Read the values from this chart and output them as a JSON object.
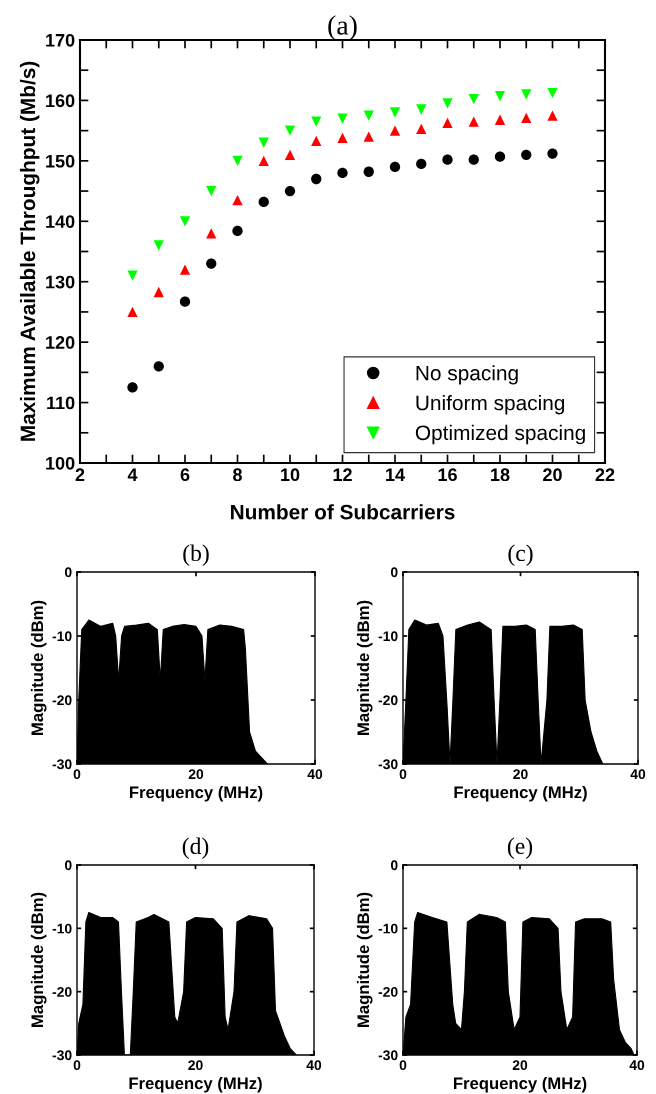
{
  "chart_data": [
    {
      "type": "scatter",
      "title": "(a)",
      "xlabel": "Number of Subcarriers",
      "ylabel": "Maximum Available Throughput (Mb/s)",
      "x": [
        4,
        5,
        6,
        7,
        8,
        9,
        10,
        11,
        12,
        13,
        14,
        15,
        16,
        17,
        18,
        19,
        20
      ],
      "series": [
        {
          "name": "No spacing",
          "color": "#000000",
          "marker": "circle",
          "values": [
            112.5,
            116,
            126.7,
            133,
            138.4,
            143.2,
            145,
            147,
            148,
            148.2,
            149,
            149.5,
            150.2,
            150.2,
            150.7,
            151,
            151.2
          ]
        },
        {
          "name": "Uniform spacing",
          "color": "#ff0000",
          "marker": "triangle",
          "values": [
            125,
            128.3,
            132,
            138,
            143.5,
            150,
            151,
            153.3,
            153.8,
            154,
            155,
            155.3,
            156.3,
            156.5,
            156.8,
            157.1,
            157.5
          ]
        },
        {
          "name": "Optimized spacing",
          "color": "#00ff00",
          "marker": "triangle_down",
          "values": [
            131,
            136,
            140,
            145,
            150,
            153,
            155,
            156.5,
            157,
            157.5,
            158,
            158.5,
            159.5,
            160.2,
            160.7,
            161,
            161.2
          ]
        }
      ],
      "xlim": [
        2,
        22
      ],
      "xticks": [
        2,
        {
          "value": 3,
          "label": null
        },
        4,
        {
          "value": 5,
          "label": null
        },
        6,
        {
          "value": 7,
          "label": null
        },
        8,
        {
          "value": 9,
          "label": null
        },
        10,
        {
          "value": 11,
          "label": null
        },
        12,
        {
          "value": 13,
          "label": null
        },
        14,
        {
          "value": 15,
          "label": null
        },
        16,
        {
          "value": 17,
          "label": null
        },
        18,
        {
          "value": 19,
          "label": null
        },
        20,
        {
          "value": 21,
          "label": null
        },
        22
      ],
      "ylim": [
        100,
        170
      ],
      "yticks": [
        100,
        {
          "value": 105,
          "label": null
        },
        110,
        {
          "value": 115,
          "label": null
        },
        120,
        {
          "value": 125,
          "label": null
        },
        130,
        {
          "value": 135,
          "label": null
        },
        140,
        {
          "value": 145,
          "label": null
        },
        150,
        {
          "value": 155,
          "label": null
        },
        160,
        {
          "value": 165,
          "label": null
        },
        170
      ],
      "grid": false,
      "legend": "bottom right"
    },
    {
      "type": "area",
      "title": "(b)",
      "xlabel": "Frequency (MHz)",
      "ylabel": "Magnitude (dBm)",
      "x": [
        0,
        0.3,
        0.8,
        2,
        4,
        6,
        6.5,
        7,
        7.5,
        8,
        10,
        12,
        13.5,
        14,
        14.5,
        16,
        18,
        20,
        21,
        21.5,
        22,
        24,
        26,
        28,
        28.3,
        29,
        30,
        31,
        32
      ],
      "values": [
        -30,
        -20,
        -9,
        -7.5,
        -8.5,
        -8,
        -10,
        -17,
        -10,
        -8.5,
        -8.3,
        -8,
        -9,
        -17,
        -9,
        -8.5,
        -8.2,
        -8.5,
        -10,
        -17,
        -9,
        -8.3,
        -8.5,
        -9,
        -12,
        -25,
        -28,
        -29,
        -30
      ],
      "color": "#000000",
      "xlim": [
        0,
        40
      ],
      "xticks": [
        0,
        20,
        40
      ],
      "ylim": [
        -30,
        0
      ],
      "yticks": [
        -30,
        -20,
        -10,
        0
      ],
      "grid": false
    },
    {
      "type": "area",
      "title": "(c)",
      "xlabel": "Frequency (MHz)",
      "ylabel": "Magnitude (dBm)",
      "x": [
        0,
        0.5,
        1,
        2,
        4,
        6,
        6.8,
        7.5,
        8,
        8.5,
        9,
        11,
        13,
        15,
        15.5,
        16,
        16.5,
        17,
        19,
        21,
        22.5,
        23,
        23.5,
        24.5,
        25,
        27,
        29,
        30.5,
        31,
        32,
        33,
        34
      ],
      "values": [
        -30,
        -20,
        -9,
        -7.5,
        -8.3,
        -8,
        -10,
        -21,
        -30,
        -20,
        -9,
        -8.3,
        -7.8,
        -9,
        -20,
        -30,
        -20,
        -8.5,
        -8.5,
        -8.3,
        -9,
        -20,
        -30,
        -20,
        -8.5,
        -8.5,
        -8.3,
        -9,
        -20,
        -25,
        -28,
        -30
      ],
      "color": "#000000",
      "xlim": [
        0,
        40
      ],
      "xticks": [
        0,
        20,
        40
      ],
      "ylim": [
        -30,
        0
      ],
      "yticks": [
        -30,
        -20,
        -10,
        0
      ],
      "grid": false
    },
    {
      "type": "area",
      "title": "(d)",
      "xlabel": "Frequency (MHz)",
      "ylabel": "Magnitude (dBm)",
      "x": [
        0,
        0.3,
        1,
        1.5,
        2,
        4,
        6,
        7,
        7.5,
        8,
        9,
        9.5,
        10,
        12,
        13,
        15.5,
        16.5,
        17,
        18,
        18.5,
        20,
        23,
        24.5,
        25,
        25.5,
        26.5,
        27,
        29,
        32,
        33,
        33.5,
        35,
        36,
        37
      ],
      "values": [
        -30,
        -25,
        -22,
        -9,
        -7.5,
        -8.3,
        -8.3,
        -9,
        -20,
        -30,
        -30,
        -20,
        -9,
        -8.3,
        -7.8,
        -9,
        -24,
        -25,
        -20,
        -9,
        -8.3,
        -8.5,
        -10,
        -24,
        -26,
        -20,
        -9,
        -8,
        -8.5,
        -10,
        -23,
        -27,
        -29,
        -30
      ],
      "color": "#000000",
      "xlim": [
        0,
        40
      ],
      "xticks": [
        0,
        20,
        40
      ],
      "ylim": [
        -30,
        0
      ],
      "yticks": [
        -30,
        -20,
        -10,
        0
      ],
      "grid": false
    },
    {
      "type": "area",
      "title": "(e)",
      "xlabel": "Frequency (MHz)",
      "ylabel": "Magnitude (dBm)",
      "x": [
        0,
        0.5,
        1.3,
        2,
        2.5,
        5,
        7.5,
        8.5,
        9,
        10,
        10.5,
        11,
        13,
        16,
        17.5,
        18,
        19,
        20,
        20.5,
        22,
        25,
        26.5,
        27,
        28,
        29,
        29.5,
        31,
        34,
        35.5,
        36,
        37,
        38,
        39,
        39.5
      ],
      "values": [
        -30,
        -24,
        -22,
        -9,
        -7.5,
        -8.3,
        -9,
        -22,
        -25,
        -26,
        -20,
        -9,
        -7.8,
        -8.3,
        -9,
        -20,
        -26,
        -24,
        -9,
        -8.3,
        -8.5,
        -10,
        -20,
        -26,
        -24,
        -9,
        -8.5,
        -8.5,
        -9,
        -18,
        -26,
        -28,
        -29,
        -30
      ],
      "color": "#000000",
      "xlim": [
        0,
        40
      ],
      "xticks": [
        0,
        20,
        40
      ],
      "ylim": [
        -30,
        0
      ],
      "yticks": [
        -30,
        -20,
        -10,
        0
      ],
      "grid": false
    }
  ]
}
